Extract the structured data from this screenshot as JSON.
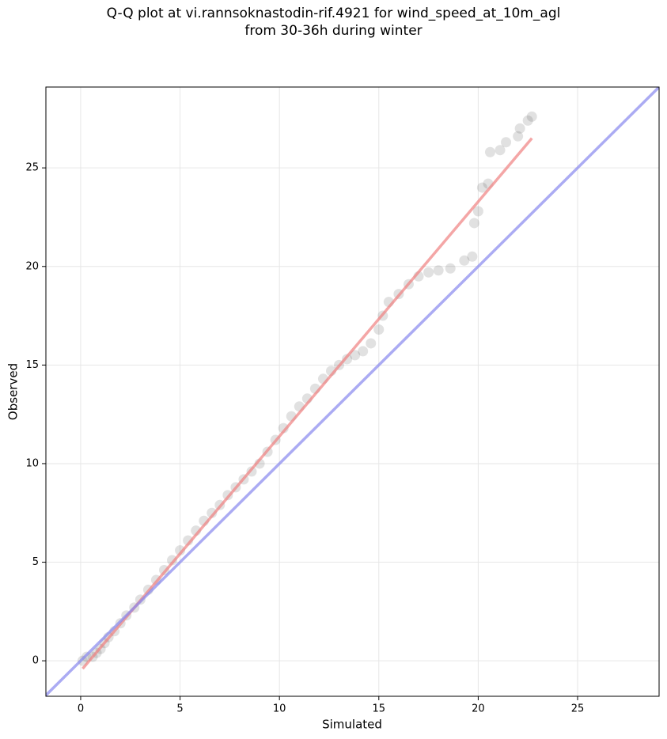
{
  "chart_data": {
    "type": "scatter",
    "title": "Q-Q plot at vi.rannsoknastodin-rif.4921 for wind_speed_at_10m_agl\nfrom 30-36h during winter",
    "xlabel": "Simulated",
    "ylabel": "Observed",
    "xlim": [
      -1.75,
      29.1
    ],
    "ylim": [
      -1.8,
      29.1
    ],
    "xticks": [
      0,
      5,
      10,
      15,
      20,
      25
    ],
    "yticks": [
      0,
      5,
      10,
      15,
      20,
      25
    ],
    "grid": true,
    "series": [
      {
        "color": "#333333",
        "x": [
          0.1,
          0.3,
          0.6,
          0.8,
          1.0,
          1.2,
          1.4,
          1.7,
          2.0,
          2.3,
          2.7,
          3.0,
          3.4,
          3.8,
          4.2,
          4.6,
          5.0,
          5.4,
          5.8,
          6.2,
          6.6,
          7.0,
          7.4,
          7.8,
          8.2,
          8.6,
          9.0,
          9.4,
          9.8,
          10.2,
          10.6,
          11.0,
          11.4,
          11.8,
          12.2,
          12.6,
          13.0,
          13.4,
          13.8,
          14.2,
          14.6,
          15.0,
          15.2,
          15.5,
          16.0,
          16.5,
          17.0,
          17.5,
          18.0,
          18.6,
          19.3,
          19.7,
          19.8,
          20.0,
          20.2,
          20.5,
          20.6,
          21.1,
          21.4,
          22.0,
          22.1,
          22.5,
          22.7
        ],
        "values": [
          0.0,
          0.2,
          0.2,
          0.4,
          0.6,
          0.9,
          1.2,
          1.5,
          1.9,
          2.3,
          2.7,
          3.1,
          3.6,
          4.1,
          4.6,
          5.1,
          5.6,
          6.1,
          6.6,
          7.1,
          7.5,
          7.9,
          8.4,
          8.8,
          9.2,
          9.6,
          10.0,
          10.6,
          11.2,
          11.8,
          12.4,
          12.9,
          13.3,
          13.8,
          14.3,
          14.7,
          15.0,
          15.3,
          15.5,
          15.7,
          16.1,
          16.8,
          17.5,
          18.2,
          18.6,
          19.1,
          19.5,
          19.7,
          19.8,
          19.9,
          20.3,
          20.5,
          22.2,
          22.8,
          24.0,
          24.2,
          25.8,
          25.9,
          26.3,
          26.6,
          27.0,
          27.4,
          27.6
        ]
      }
    ],
    "fit_line": {
      "color": "#f08080",
      "x": [
        0.1,
        22.7
      ],
      "values": [
        -0.4,
        26.5
      ]
    },
    "reference_line": {
      "color": "#8888ee",
      "x": [
        -1.75,
        29.1
      ],
      "values": [
        -1.75,
        29.1
      ]
    }
  }
}
